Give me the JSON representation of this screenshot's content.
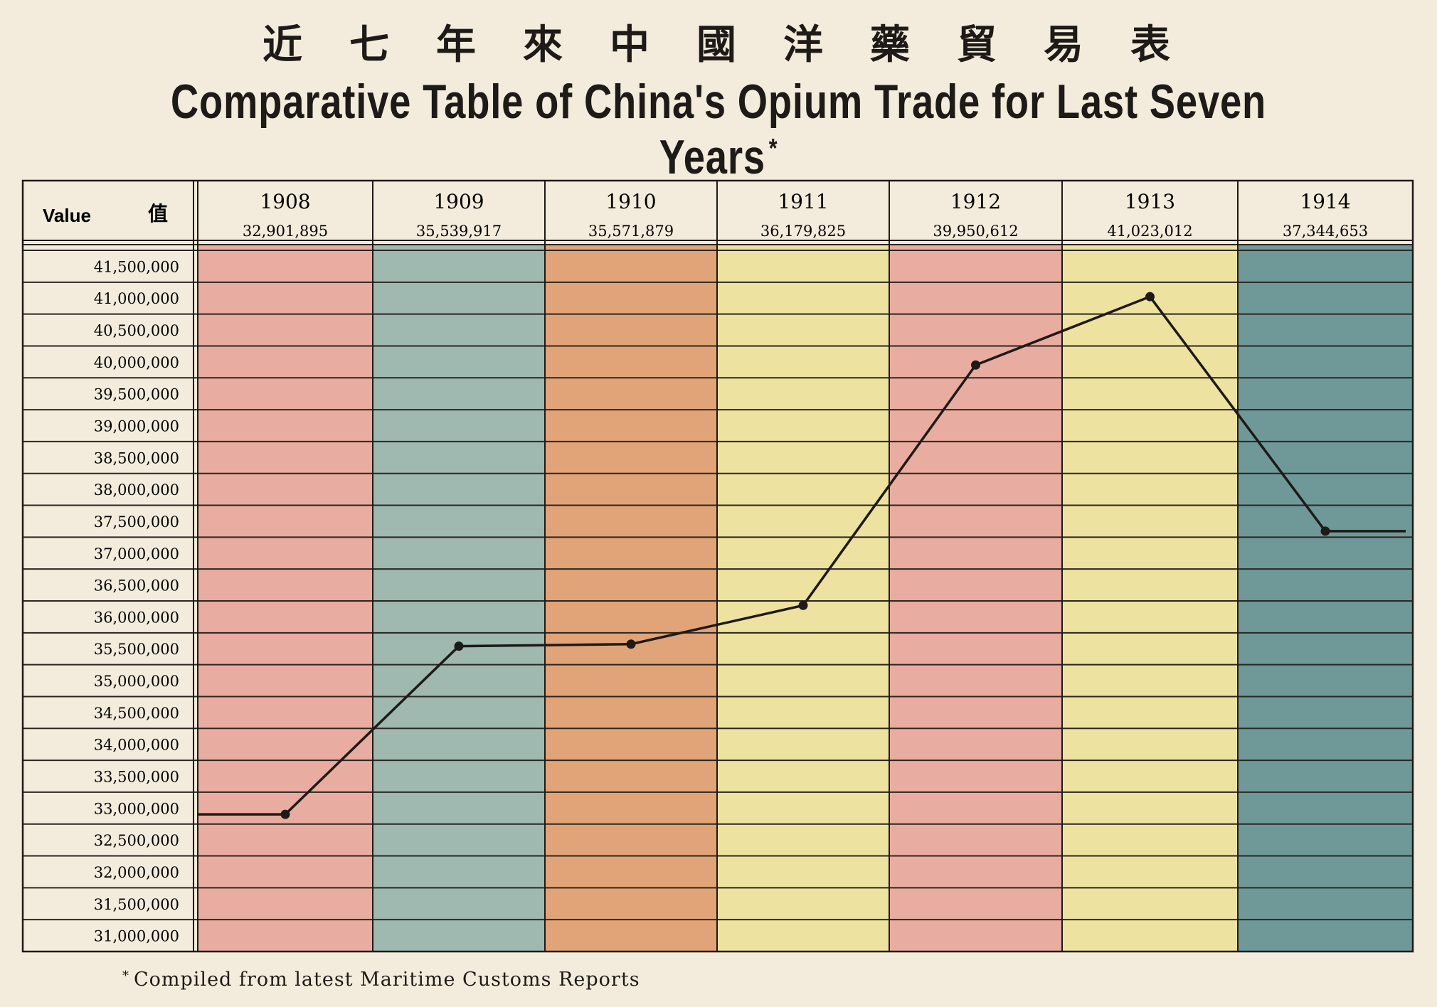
{
  "chart_data": {
    "type": "line",
    "title_chinese": "近七年來中國洋藥貿易表",
    "title": "Comparative Table of China's Opium Trade for Last Seven Years",
    "title_mark": "*",
    "header_label": "Value",
    "header_label_chinese": "值",
    "categories": [
      "1908",
      "1909",
      "1910",
      "1911",
      "1912",
      "1913",
      "1914"
    ],
    "value_labels": [
      "32,901,895",
      "35,539,917",
      "35,571,879",
      "36,179,825",
      "39,950,612",
      "41,023,012",
      "37,344,653"
    ],
    "values": [
      32901895,
      35539917,
      35571879,
      36179825,
      39950612,
      41023012,
      37344653
    ],
    "y_ticks": [
      "41,500,000",
      "41,000,000",
      "40,500,000",
      "40,000,000",
      "39,500,000",
      "39,000,000",
      "38,500,000",
      "38,000,000",
      "37,500,000",
      "37,000,000",
      "36,500,000",
      "36,000,000",
      "35,500,000",
      "35,000,000",
      "34,500,000",
      "34,000,000",
      "33,500,000",
      "33,000,000",
      "32,500,000",
      "32,000,000",
      "31,500,000",
      "31,000,000"
    ],
    "ylim": [
      31000000,
      41500000
    ],
    "column_colors": [
      "#e9aca0",
      "#9fb8b0",
      "#e1a478",
      "#ede2a0",
      "#e9aca0",
      "#ede2a0",
      "#6f9899"
    ],
    "line_color": "#1e1a17",
    "grid": true,
    "footnote_mark": "*",
    "footnote": "Compiled from latest Maritime Customs Reports"
  }
}
